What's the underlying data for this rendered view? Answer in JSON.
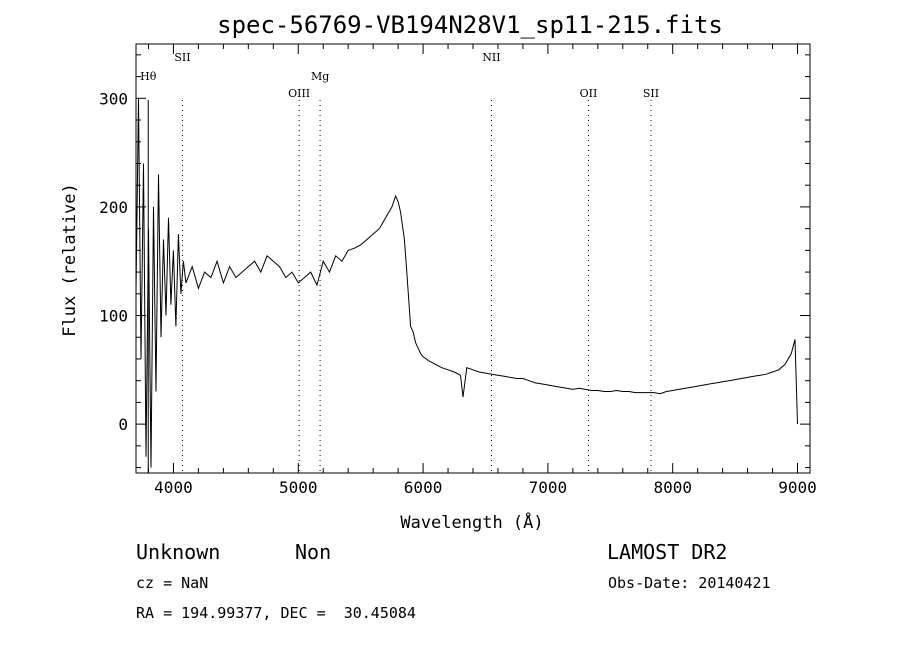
{
  "chart_data": {
    "type": "line",
    "title": "spec-56769-VB194N28V1_sp11-215.fits",
    "xlabel": "Wavelength (Å)",
    "ylabel": "Flux (relative)",
    "xlim": [
      3700,
      9100
    ],
    "ylim": [
      -45,
      350
    ],
    "x_ticks": [
      4000,
      5000,
      6000,
      7000,
      8000,
      9000
    ],
    "y_ticks": [
      0,
      100,
      200,
      300
    ],
    "grid": false,
    "line_color": "#000000",
    "series": [
      {
        "x": [
          3700,
          3720,
          3740,
          3760,
          3780,
          3800,
          3820,
          3840,
          3860,
          3880,
          3900,
          3920,
          3940,
          3960,
          3980,
          4000,
          4020,
          4040,
          4060,
          4080,
          4100,
          4150,
          4200,
          4250,
          4300,
          4350,
          4400,
          4450,
          4500,
          4550,
          4600,
          4650,
          4700,
          4750,
          4800,
          4850,
          4900,
          4950,
          5000,
          5050,
          5100,
          5150,
          5200,
          5250,
          5300,
          5350,
          5400,
          5450,
          5500,
          5550,
          5600,
          5650,
          5700,
          5750,
          5780,
          5800,
          5820,
          5850,
          5870,
          5900,
          5920,
          5940,
          5960,
          5980,
          6000,
          6050,
          6100,
          6150,
          6200,
          6250,
          6300,
          6320,
          6350,
          6400,
          6450,
          6500,
          6550,
          6600,
          6650,
          6700,
          6750,
          6800,
          6850,
          6900,
          6950,
          7000,
          7050,
          7100,
          7150,
          7200,
          7250,
          7300,
          7350,
          7400,
          7450,
          7500,
          7550,
          7600,
          7650,
          7700,
          7750,
          7800,
          7850,
          7900,
          7950,
          8000,
          8050,
          8100,
          8150,
          8200,
          8250,
          8300,
          8350,
          8400,
          8450,
          8500,
          8550,
          8600,
          8650,
          8700,
          8750,
          8800,
          8850,
          8900,
          8950,
          8980,
          9000
        ],
        "y": [
          120,
          300,
          60,
          240,
          -30,
          180,
          -40,
          200,
          30,
          230,
          80,
          170,
          100,
          190,
          110,
          160,
          90,
          175,
          120,
          150,
          130,
          145,
          125,
          140,
          135,
          150,
          130,
          145,
          135,
          140,
          145,
          150,
          140,
          155,
          150,
          145,
          135,
          140,
          130,
          135,
          140,
          128,
          150,
          140,
          155,
          150,
          160,
          162,
          165,
          170,
          175,
          180,
          190,
          200,
          210,
          205,
          195,
          170,
          140,
          90,
          85,
          75,
          70,
          65,
          62,
          58,
          55,
          52,
          50,
          48,
          45,
          25,
          52,
          50,
          48,
          47,
          46,
          45,
          44,
          43,
          42,
          42,
          40,
          38,
          37,
          36,
          35,
          34,
          33,
          32,
          33,
          32,
          31,
          31,
          30,
          30,
          31,
          30,
          30,
          29,
          29,
          29,
          29,
          28,
          30,
          31,
          32,
          33,
          34,
          35,
          36,
          37,
          38,
          39,
          40,
          41,
          42,
          43,
          44,
          45,
          46,
          48,
          50,
          55,
          65,
          78,
          0
        ]
      }
    ],
    "lines": [
      {
        "label": "Hθ",
        "x": 3798,
        "row": 1,
        "dotted": false
      },
      {
        "label": "SII",
        "x": 4072,
        "row": 0,
        "dotted": true
      },
      {
        "label": "OIII",
        "x": 5007,
        "row": 2,
        "dotted": true
      },
      {
        "label": "Mg",
        "x": 5175,
        "row": 1,
        "dotted": true
      },
      {
        "label": "NII",
        "x": 6548,
        "row": 0,
        "dotted": true
      },
      {
        "label": "OII",
        "x": 7325,
        "row": 2,
        "dotted": true
      },
      {
        "label": "SII",
        "x": 7826,
        "row": 2,
        "dotted": true
      }
    ]
  },
  "info": {
    "class": "Unknown",
    "subclass": "Non",
    "survey": "LAMOST DR2",
    "cz": "cz = NaN",
    "obs_date": "Obs-Date: 20140421",
    "coords": "RA = 194.99377, DEC =  30.45084"
  }
}
